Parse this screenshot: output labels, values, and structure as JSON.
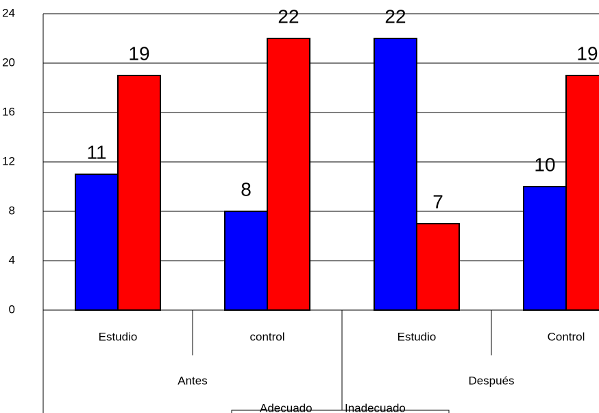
{
  "chart_data": {
    "type": "bar",
    "categories": [
      "Estudio",
      "control",
      "Estudio",
      "Control"
    ],
    "groups": [
      "Antes",
      "Después"
    ],
    "series": [
      {
        "name": "Adecuado",
        "color": "#0000ff",
        "values": [
          11,
          8,
          22,
          10
        ]
      },
      {
        "name": "Inadecuado",
        "color": "#ff0000",
        "values": [
          19,
          22,
          7,
          19
        ]
      }
    ],
    "ylim": [
      0,
      24
    ],
    "yticks": [
      0,
      4,
      8,
      12,
      16,
      20,
      24
    ],
    "grid": true,
    "legend": "bottom"
  }
}
